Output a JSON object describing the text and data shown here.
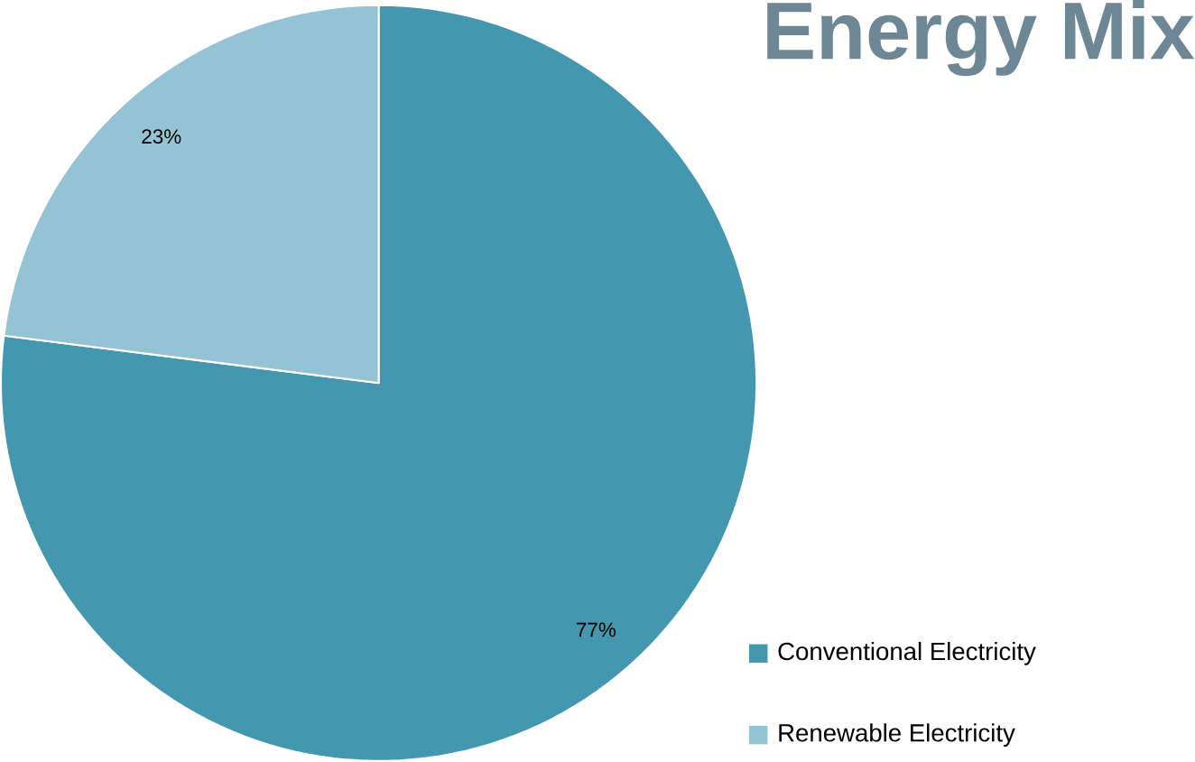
{
  "chart_data": {
    "type": "pie",
    "title": "Energy Mix",
    "categories": [
      "Conventional Electricity",
      "Renewable Electricity"
    ],
    "values": [
      77,
      23
    ],
    "colors": [
      "#4397ae",
      "#93c3d4"
    ],
    "value_labels": [
      "77%",
      "23%"
    ],
    "legend": "bottom right"
  }
}
